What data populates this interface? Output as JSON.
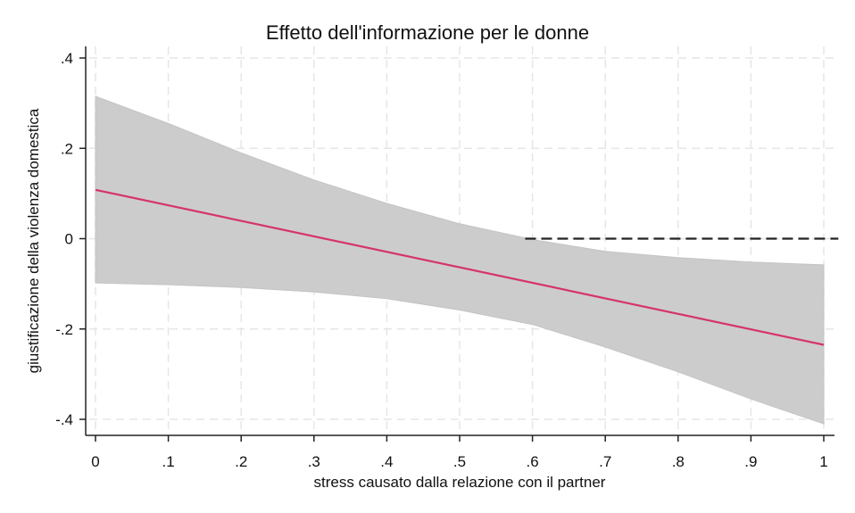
{
  "chart_data": {
    "type": "line",
    "title": "Effetto dell'informazione per le donne",
    "xlabel": "stress causato dalla relazione con il partner",
    "ylabel": "giustificazione della violenza domestica",
    "xlim": [
      0,
      1
    ],
    "ylim": [
      -0.4,
      0.4
    ],
    "x_ticks": [
      0,
      0.1,
      0.2,
      0.3,
      0.4,
      0.5,
      0.6,
      0.7,
      0.8,
      0.9,
      1
    ],
    "x_tick_labels": [
      "0",
      ".1",
      ".2",
      ".3",
      ".4",
      ".5",
      ".6",
      ".7",
      ".8",
      ".9",
      "1"
    ],
    "y_ticks": [
      0.4,
      0.2,
      0,
      -0.2,
      -0.4
    ],
    "y_tick_labels": [
      ".4",
      ".2",
      "0",
      "-.2",
      "-.4"
    ],
    "grid": true,
    "series": [
      {
        "kind": "line",
        "x": [
          0,
          1
        ],
        "y": [
          0.108,
          -0.235
        ],
        "color": "#d6336c"
      },
      {
        "kind": "confidence_band",
        "x": [
          0,
          0.1,
          0.2,
          0.3,
          0.4,
          0.5,
          0.6,
          0.7,
          0.8,
          0.9,
          1
        ],
        "upper": [
          0.315,
          0.255,
          0.19,
          0.13,
          0.078,
          0.033,
          -0.002,
          -0.028,
          -0.042,
          -0.052,
          -0.058
        ],
        "lower": [
          -0.098,
          -0.102,
          -0.108,
          -0.118,
          -0.133,
          -0.158,
          -0.19,
          -0.24,
          -0.295,
          -0.355,
          -0.41
        ],
        "color": "#cccccc"
      }
    ],
    "reference_line": {
      "y": 0,
      "x_start": 0.59,
      "x_end": 1.02,
      "style": "dashed",
      "color": "#222222"
    }
  }
}
